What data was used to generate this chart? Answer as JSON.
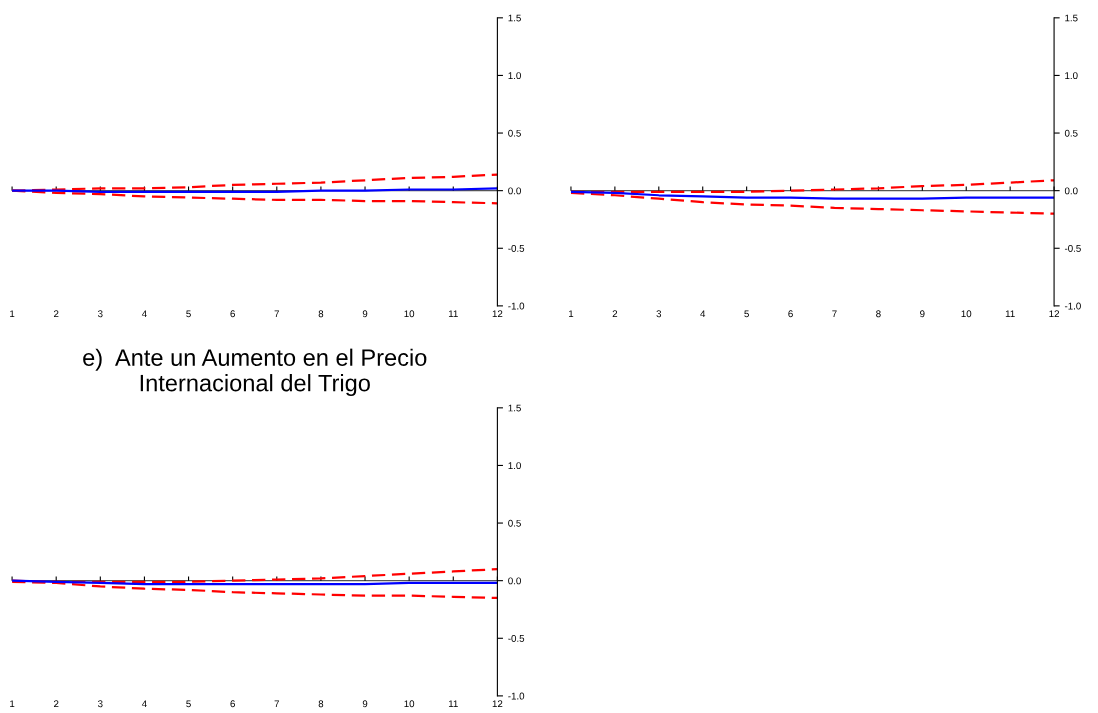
{
  "chart_data": [
    {
      "type": "line",
      "x": [
        1,
        2,
        3,
        4,
        5,
        6,
        7,
        8,
        9,
        10,
        11,
        12
      ],
      "xlim": [
        1,
        12
      ],
      "xticks": [
        1,
        2,
        3,
        4,
        5,
        6,
        7,
        8,
        9,
        10,
        11,
        12
      ],
      "ylim": [
        -1.0,
        1.5
      ],
      "yticks": [
        {
          "value": -1.0,
          "label": "-1.0"
        },
        {
          "value": -0.5,
          "label": "-0.5"
        },
        {
          "value": 0.0,
          "label": "0.0"
        },
        {
          "value": 0.5,
          "label": "0.5"
        },
        {
          "value": 1.0,
          "label": "1.0"
        },
        {
          "value": 1.5,
          "label": "1.5"
        }
      ],
      "ref_lines": [
        {
          "axis": "y",
          "value": 0,
          "label": null,
          "color": "#555555"
        }
      ],
      "series": [
        {
          "color": "#ff0000",
          "line_style": "dashed",
          "values": [
            0.0,
            0.01,
            0.02,
            0.02,
            0.03,
            0.05,
            0.06,
            0.07,
            0.09,
            0.11,
            0.12,
            0.14
          ]
        },
        {
          "color": "#ff0000",
          "line_style": "dashed",
          "values": [
            0.0,
            -0.02,
            -0.03,
            -0.05,
            -0.06,
            -0.07,
            -0.08,
            -0.08,
            -0.09,
            -0.09,
            -0.1,
            -0.11
          ]
        },
        {
          "color": "#0000ff",
          "line_style": "solid",
          "values": [
            0.0,
            0.0,
            -0.01,
            -0.01,
            -0.01,
            -0.01,
            -0.01,
            0.0,
            0.0,
            0.01,
            0.01,
            0.02
          ]
        }
      ]
    },
    {
      "type": "line",
      "x": [
        1,
        2,
        3,
        4,
        5,
        6,
        7,
        8,
        9,
        10,
        11,
        12
      ],
      "xlim": [
        1,
        12
      ],
      "xticks": [
        1,
        2,
        3,
        4,
        5,
        6,
        7,
        8,
        9,
        10,
        11,
        12
      ],
      "ylim": [
        -1.0,
        1.5
      ],
      "yticks": [
        {
          "value": -1.0,
          "label": "-1.0"
        },
        {
          "value": -0.5,
          "label": "-0.5"
        },
        {
          "value": 0.0,
          "label": "0.0"
        },
        {
          "value": 0.5,
          "label": "0.5"
        },
        {
          "value": 1.0,
          "label": "1.0"
        },
        {
          "value": 1.5,
          "label": "1.5"
        }
      ],
      "ref_lines": [
        {
          "axis": "y",
          "value": 0,
          "label": null,
          "color": "#555555"
        }
      ],
      "series": [
        {
          "color": "#ff0000",
          "line_style": "dashed",
          "values": [
            -0.01,
            -0.01,
            -0.01,
            -0.01,
            -0.01,
            0.0,
            0.01,
            0.02,
            0.04,
            0.05,
            0.07,
            0.09
          ]
        },
        {
          "color": "#ff0000",
          "line_style": "dashed",
          "values": [
            -0.02,
            -0.04,
            -0.07,
            -0.1,
            -0.12,
            -0.13,
            -0.15,
            -0.16,
            -0.17,
            -0.18,
            -0.19,
            -0.2
          ]
        },
        {
          "color": "#0000ff",
          "line_style": "solid",
          "values": [
            -0.01,
            -0.02,
            -0.04,
            -0.05,
            -0.06,
            -0.06,
            -0.07,
            -0.07,
            -0.07,
            -0.06,
            -0.06,
            -0.06
          ]
        }
      ]
    },
    {
      "type": "line",
      "title": "e)  Ante un Aumento en el Precio\nInternacional del Trigo",
      "x": [
        1,
        2,
        3,
        4,
        5,
        6,
        7,
        8,
        9,
        10,
        11,
        12
      ],
      "xlim": [
        1,
        12
      ],
      "xticks": [
        1,
        2,
        3,
        4,
        5,
        6,
        7,
        8,
        9,
        10,
        11,
        12
      ],
      "ylim": [
        -1.0,
        1.5
      ],
      "yticks": [
        {
          "value": -1.0,
          "label": "-1.0"
        },
        {
          "value": -0.5,
          "label": "-0.5"
        },
        {
          "value": 0.0,
          "label": "0.0"
        },
        {
          "value": 0.5,
          "label": "0.5"
        },
        {
          "value": 1.0,
          "label": "1.0"
        },
        {
          "value": 1.5,
          "label": "1.5"
        }
      ],
      "ref_lines": [
        {
          "axis": "y",
          "value": 0,
          "label": null,
          "color": "#555555"
        }
      ],
      "series": [
        {
          "color": "#ff0000",
          "line_style": "dashed",
          "values": [
            0.0,
            -0.01,
            -0.01,
            -0.01,
            -0.01,
            0.0,
            0.01,
            0.02,
            0.04,
            0.06,
            0.08,
            0.1
          ]
        },
        {
          "color": "#ff0000",
          "line_style": "dashed",
          "values": [
            -0.01,
            -0.02,
            -0.05,
            -0.07,
            -0.08,
            -0.1,
            -0.11,
            -0.12,
            -0.13,
            -0.13,
            -0.14,
            -0.15
          ]
        },
        {
          "color": "#0000ff",
          "line_style": "solid",
          "values": [
            0.0,
            -0.01,
            -0.02,
            -0.03,
            -0.03,
            -0.03,
            -0.03,
            -0.03,
            -0.03,
            -0.02,
            -0.02,
            -0.02
          ]
        }
      ]
    }
  ]
}
